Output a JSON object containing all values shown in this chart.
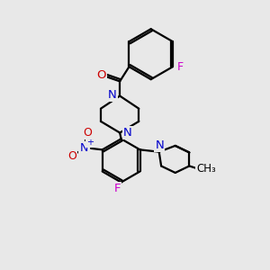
{
  "bg_color": "#e8e8e8",
  "bond_color": "#000000",
  "N_color": "#0000cc",
  "O_color": "#cc0000",
  "F_color": "#cc00cc",
  "line_width": 1.6,
  "figsize": [
    3.0,
    3.0
  ],
  "dpi": 100,
  "xlim": [
    0,
    10
  ],
  "ylim": [
    0,
    10
  ]
}
